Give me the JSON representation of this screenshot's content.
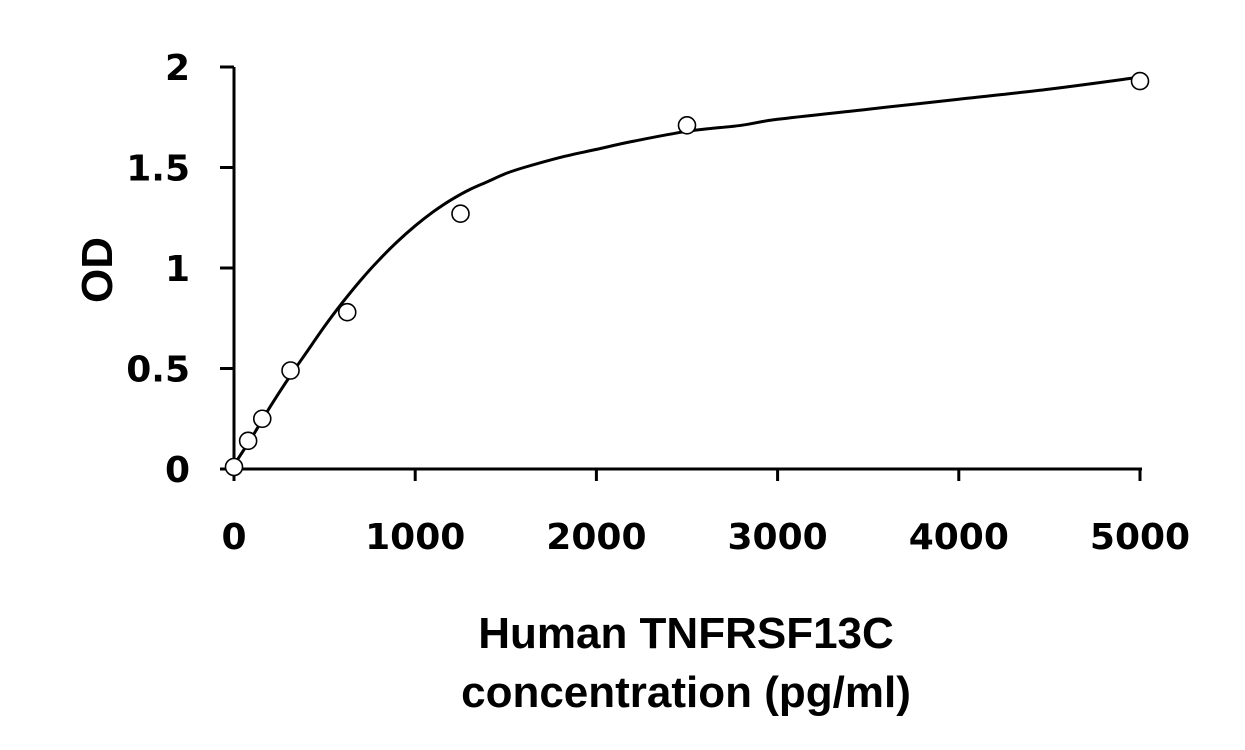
{
  "chart_data": {
    "type": "scatter",
    "xlabel_lines": [
      "Human TNFRSF13C",
      "concentration (pg/ml)"
    ],
    "ylabel": "OD",
    "xlim": [
      0,
      5000
    ],
    "ylim": [
      0,
      2
    ],
    "x_ticks": [
      0,
      1000,
      2000,
      3000,
      4000,
      5000
    ],
    "y_ticks": [
      0,
      0.5,
      1,
      1.5,
      2
    ],
    "x_tick_labels": [
      "0",
      "1000",
      "2000",
      "3000",
      "4000",
      "5000"
    ],
    "y_tick_labels": [
      "0",
      "0.5",
      "1",
      "1.5",
      "2"
    ],
    "grid": false,
    "legend": "none",
    "series": [
      {
        "x": [
          0,
          78,
          156,
          312,
          625,
          1250,
          2500,
          5000
        ],
        "y": [
          0.01,
          0.14,
          0.25,
          0.49,
          0.78,
          1.27,
          1.71,
          1.93
        ],
        "marker": "open-circle"
      }
    ],
    "fit_curve": {
      "x": [
        0,
        100,
        200,
        300,
        400,
        500,
        600,
        700,
        800,
        900,
        1000,
        1100,
        1200,
        1300,
        1400,
        1500,
        1600,
        1800,
        2000,
        2200,
        2500,
        2800,
        3000,
        3500,
        4000,
        4500,
        5000
      ],
      "y": [
        0.02,
        0.16,
        0.31,
        0.45,
        0.58,
        0.71,
        0.83,
        0.94,
        1.04,
        1.13,
        1.21,
        1.28,
        1.34,
        1.39,
        1.43,
        1.47,
        1.5,
        1.55,
        1.59,
        1.63,
        1.68,
        1.71,
        1.74,
        1.79,
        1.84,
        1.89,
        1.95
      ]
    }
  }
}
